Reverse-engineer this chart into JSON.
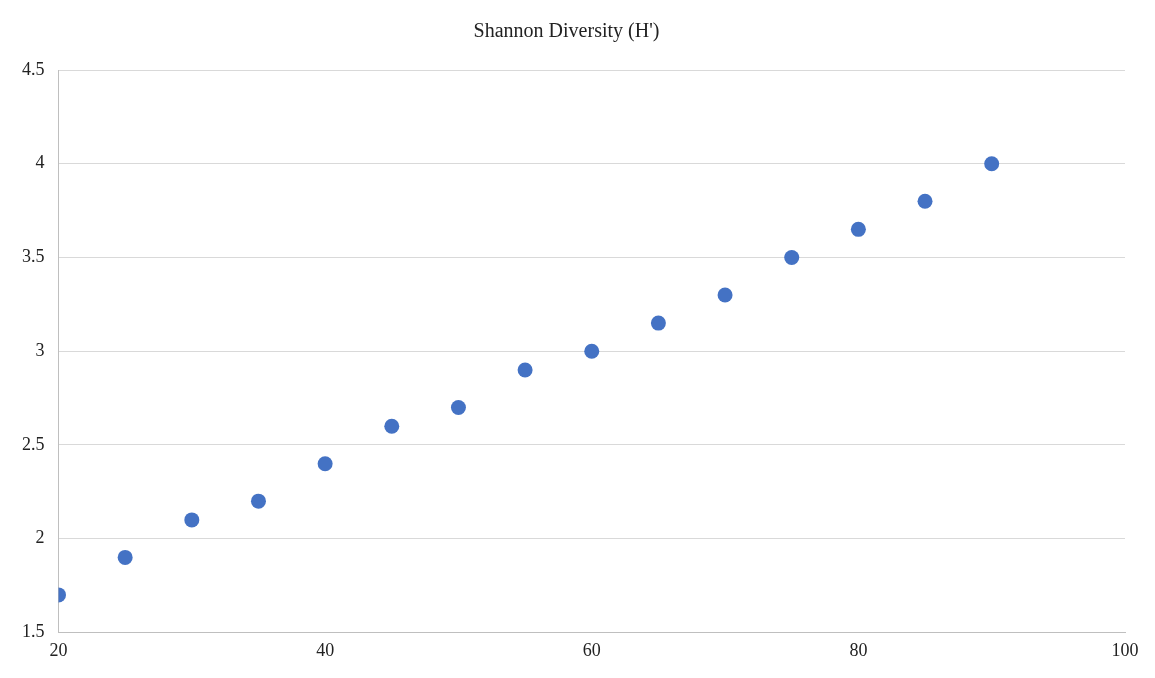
{
  "chart_data": {
    "type": "scatter",
    "title": "Shannon Diversity (H')",
    "x": [
      20,
      25,
      30,
      35,
      40,
      45,
      50,
      55,
      60,
      65,
      70,
      75,
      80,
      85,
      90
    ],
    "series": [
      {
        "color": "#4472c4",
        "values": [
          1.7,
          1.9,
          2.1,
          2.2,
          2.4,
          2.6,
          2.7,
          2.9,
          3.0,
          3.15,
          3.3,
          3.5,
          3.65,
          3.8,
          4.0
        ]
      }
    ],
    "xlim": [
      20,
      100
    ],
    "xticks": [
      20,
      40,
      60,
      80,
      100
    ],
    "ylim": [
      1.5,
      4.5
    ],
    "yticks": [
      1.5,
      2,
      2.5,
      3,
      3.5,
      4,
      4.5
    ],
    "grid": "y",
    "legend": false,
    "marker": "circle"
  }
}
